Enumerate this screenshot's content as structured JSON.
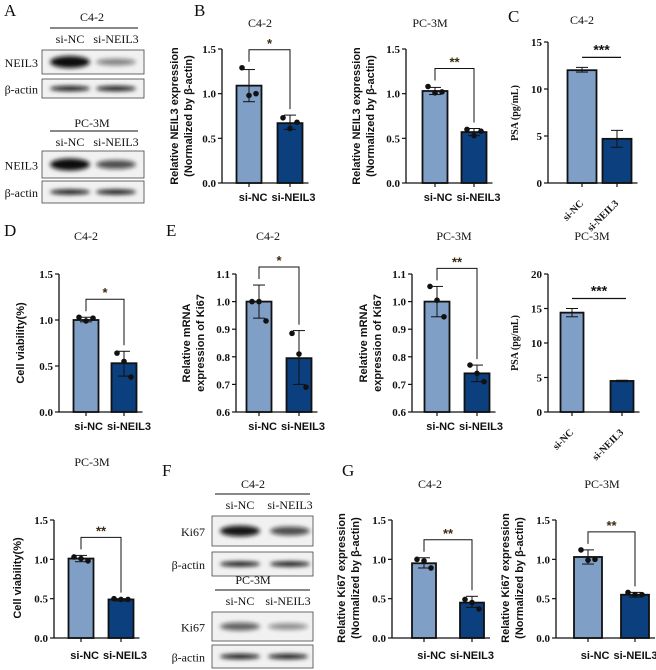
{
  "panel_letters": [
    "A",
    "B",
    "C",
    "D",
    "E",
    "F",
    "G"
  ],
  "colors": {
    "si-NC": "#7f9fc6",
    "si-NEIL3": "#0c3f7d",
    "outline": "#111111",
    "points": "#111111"
  },
  "blots": [
    {
      "panel": "A",
      "cell_line": "C4-2",
      "lanes": [
        "si-NC",
        "si-NEIL3"
      ],
      "rows": [
        {
          "label": "NEIL3",
          "band_intensity": [
            1.0,
            0.35
          ]
        },
        {
          "label": "β-actin",
          "band_intensity": [
            0.95,
            0.95
          ]
        }
      ]
    },
    {
      "panel": "A",
      "cell_line": "PC-3M",
      "lanes": [
        "si-NC",
        "si-NEIL3"
      ],
      "rows": [
        {
          "label": "NEIL3",
          "band_intensity": [
            1.0,
            0.6
          ]
        },
        {
          "label": "β-actin",
          "band_intensity": [
            0.95,
            0.95
          ]
        }
      ]
    },
    {
      "panel": "F",
      "cell_line": "C4-2",
      "lanes": [
        "si-NC",
        "si-NEIL3"
      ],
      "rows": [
        {
          "label": "Ki67",
          "band_intensity": [
            0.85,
            0.6
          ]
        },
        {
          "label": "β-actin",
          "band_intensity": [
            0.95,
            0.95
          ]
        }
      ]
    },
    {
      "panel": "F",
      "cell_line": "PC-3M",
      "lanes": [
        "si-NC",
        "si-NEIL3"
      ],
      "rows": [
        {
          "label": "Ki67",
          "band_intensity": [
            0.5,
            0.3
          ]
        },
        {
          "label": "β-actin",
          "band_intensity": [
            0.95,
            0.95
          ]
        }
      ]
    }
  ],
  "chart_data": [
    {
      "panel": "B",
      "type": "bar",
      "title": "C4-2",
      "ylabel": [
        "Relative NEIL3 expression",
        "(Normalized by β-actin)"
      ],
      "categories": [
        "si-NC",
        "si-NEIL3"
      ],
      "ylim": [
        0,
        1.5
      ],
      "yticks": [
        "0.0",
        "0.5",
        "1.0",
        "1.5"
      ],
      "values": [
        1.09,
        0.67
      ],
      "error_low": [
        0.91,
        0.6
      ],
      "error_high": [
        1.27,
        0.76
      ],
      "points": [
        [
          1.29,
          0.98,
          1.0
        ],
        [
          0.73,
          0.61,
          0.68
        ]
      ],
      "significance": "*"
    },
    {
      "panel": "B",
      "type": "bar",
      "title": "PC-3M",
      "ylabel": [
        "Relative NEIL3 expression",
        "(Normalized by β-actin)"
      ],
      "categories": [
        "si-NC",
        "si-NEIL3"
      ],
      "ylim": [
        0,
        1.5
      ],
      "yticks": [
        "0.0",
        "0.5",
        "1.0",
        "1.5"
      ],
      "values": [
        1.03,
        0.57
      ],
      "error_low": [
        0.99,
        0.53
      ],
      "error_high": [
        1.07,
        0.61
      ],
      "points": [
        [
          1.08,
          1.01,
          1.02
        ],
        [
          0.6,
          0.53,
          0.58
        ]
      ],
      "significance": "**"
    },
    {
      "panel": "C",
      "type": "bar",
      "title": "C4-2",
      "ylabel": [
        "PSA (pg/mL)"
      ],
      "categories": [
        "si-NC",
        "si-NEIL3"
      ],
      "ylim": [
        0,
        15
      ],
      "yticks": [
        "0",
        "5",
        "10",
        "15"
      ],
      "values": [
        12.0,
        4.7
      ],
      "error_low": [
        11.8,
        3.8
      ],
      "error_high": [
        12.3,
        5.6
      ],
      "points": [
        [],
        []
      ],
      "significance": "***"
    },
    {
      "panel": "D",
      "type": "bar",
      "title": "C4-2",
      "ylabel": [
        "Cell viability(%)"
      ],
      "categories": [
        "si-NC",
        "si-NEIL3"
      ],
      "ylim": [
        0,
        1.5
      ],
      "yticks": [
        "0.0",
        "0.5",
        "1.0",
        "1.5"
      ],
      "values": [
        1.0,
        0.53
      ],
      "error_low": [
        0.98,
        0.39
      ],
      "error_high": [
        1.03,
        0.66
      ],
      "points": [
        [
          1.03,
          0.99,
          1.02
        ],
        [
          0.64,
          0.55,
          0.38
        ]
      ],
      "significance": "*"
    },
    {
      "panel": "E",
      "type": "bar",
      "title": "C4-2",
      "ylabel": [
        "Relative mRNA",
        "expression of Ki67"
      ],
      "categories": [
        "si-NC",
        "si-NEIL3"
      ],
      "ylim": [
        0.6,
        1.1
      ],
      "yticks": [
        "0.6",
        "0.7",
        "0.8",
        "0.9",
        "1.0",
        "1.1"
      ],
      "values": [
        1.0,
        0.795
      ],
      "error_low": [
        0.94,
        0.7
      ],
      "error_high": [
        1.06,
        0.895
      ],
      "points": [
        [
          1.0,
          1.0,
          0.93
        ],
        [
          0.885,
          0.81,
          0.69
        ]
      ],
      "significance": "*"
    },
    {
      "panel": "E",
      "type": "bar",
      "title": "PC-3M",
      "ylabel": [
        "Relative mRNA",
        "expression of Ki67"
      ],
      "categories": [
        "si-NC",
        "si-NEIL3"
      ],
      "ylim": [
        0.6,
        1.1
      ],
      "yticks": [
        "0.6",
        "0.7",
        "0.8",
        "0.9",
        "1.0",
        "1.1"
      ],
      "values": [
        1.0,
        0.74
      ],
      "error_low": [
        0.945,
        0.71
      ],
      "error_high": [
        1.055,
        0.77
      ],
      "points": [
        [
          1.055,
          1.005,
          0.945
        ],
        [
          0.77,
          0.74,
          0.71
        ]
      ],
      "significance": "**"
    },
    {
      "panel": "C",
      "type": "bar",
      "title": "PC-3M",
      "ylabel": [
        "PSA (pg/mL)"
      ],
      "categories": [
        "si-NC",
        "si-NEIL3"
      ],
      "ylim": [
        0,
        20
      ],
      "yticks": [
        "0",
        "5",
        "10",
        "15",
        "20"
      ],
      "values": [
        14.4,
        4.5
      ],
      "error_low": [
        13.8,
        4.4
      ],
      "error_high": [
        15.0,
        4.6
      ],
      "points": [
        [],
        []
      ],
      "significance": "***"
    },
    {
      "panel": "D",
      "type": "bar",
      "title": "PC-3M",
      "ylabel": [
        "Cell viability(%)"
      ],
      "categories": [
        "si-NC",
        "si-NEIL3"
      ],
      "ylim": [
        0,
        1.5
      ],
      "yticks": [
        "0.0",
        "0.5",
        "1.0",
        "1.5"
      ],
      "values": [
        1.01,
        0.49
      ],
      "error_low": [
        0.97,
        0.47
      ],
      "error_high": [
        1.05,
        0.5
      ],
      "points": [
        [
          1.03,
          1.01,
          0.98
        ],
        [
          0.5,
          0.49,
          0.49
        ]
      ],
      "significance": "**"
    },
    {
      "panel": "G",
      "type": "bar",
      "title": "C4-2",
      "ylabel": [
        "Relative Ki67 expression",
        "(Normalized by β-actin)"
      ],
      "categories": [
        "si-NC",
        "si-NEIL3"
      ],
      "ylim": [
        0,
        1.5
      ],
      "yticks": [
        "0.0",
        "0.5",
        "1.0",
        "1.5"
      ],
      "values": [
        0.95,
        0.45
      ],
      "error_low": [
        0.89,
        0.39
      ],
      "error_high": [
        1.02,
        0.53
      ],
      "points": [
        [
          1.0,
          0.98,
          0.89
        ],
        [
          0.49,
          0.45,
          0.37
        ]
      ],
      "significance": "**"
    },
    {
      "panel": "G",
      "type": "bar",
      "title": "PC-3M",
      "ylabel": [
        "Relative Ki67 expression",
        "(Normalized by β-actin)"
      ],
      "categories": [
        "si-NC",
        "si-NEIL3"
      ],
      "ylim": [
        0,
        1.5
      ],
      "yticks": [
        "0.0",
        "0.5",
        "1.0",
        "1.5"
      ],
      "values": [
        1.03,
        0.55
      ],
      "error_low": [
        0.94,
        0.52
      ],
      "error_high": [
        1.12,
        0.58
      ],
      "points": [
        [
          1.12,
          0.99,
          1.0
        ],
        [
          0.58,
          0.55,
          0.55
        ]
      ],
      "significance": "**"
    }
  ]
}
